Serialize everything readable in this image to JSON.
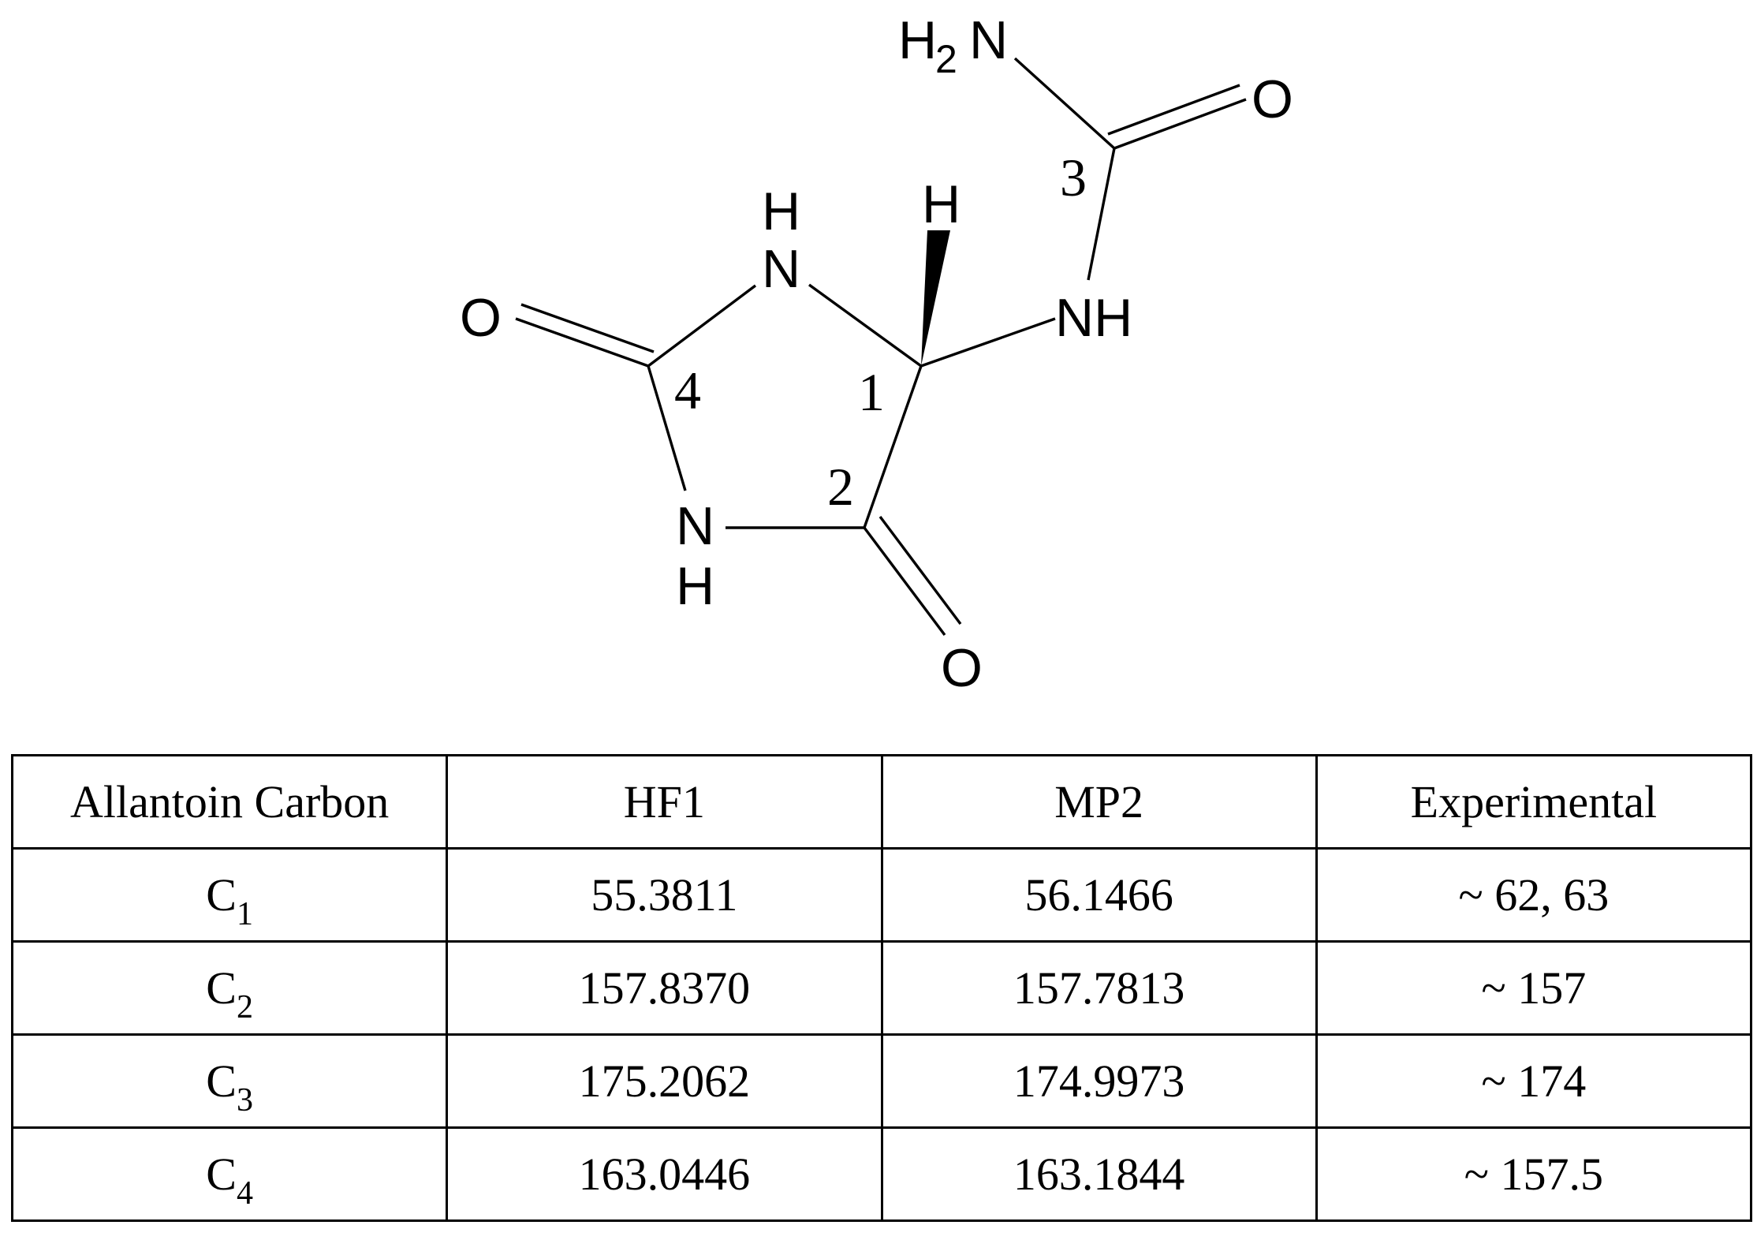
{
  "molecule": {
    "atoms": {
      "nh2_main": "H",
      "nh2_sub": "2",
      "nh2_n": "N",
      "o_urea": "O",
      "nh_top_h": "H",
      "nh_top_n": "N",
      "h_wedge": "H",
      "nh_side": "NH",
      "o_left": "O",
      "nh_bottom_n": "N",
      "nh_bottom_h": "H",
      "o_bottom": "O"
    },
    "carbon_numbers": [
      "1",
      "2",
      "3",
      "4"
    ]
  },
  "table": {
    "headers": [
      "Allantoin Carbon",
      "HF1",
      "MP2",
      "Experimental"
    ],
    "rows": [
      {
        "carbon": "C",
        "index": "1",
        "hf1": "55.3811",
        "mp2": "56.1466",
        "experimental": "~ 62, 63"
      },
      {
        "carbon": "C",
        "index": "2",
        "hf1": "157.8370",
        "mp2": "157.7813",
        "experimental": "~ 157"
      },
      {
        "carbon": "C",
        "index": "3",
        "hf1": "175.2062",
        "mp2": "174.9973",
        "experimental": "~ 174"
      },
      {
        "carbon": "C",
        "index": "4",
        "hf1": "163.0446",
        "mp2": "163.1844",
        "experimental": "~ 157.5"
      }
    ]
  }
}
